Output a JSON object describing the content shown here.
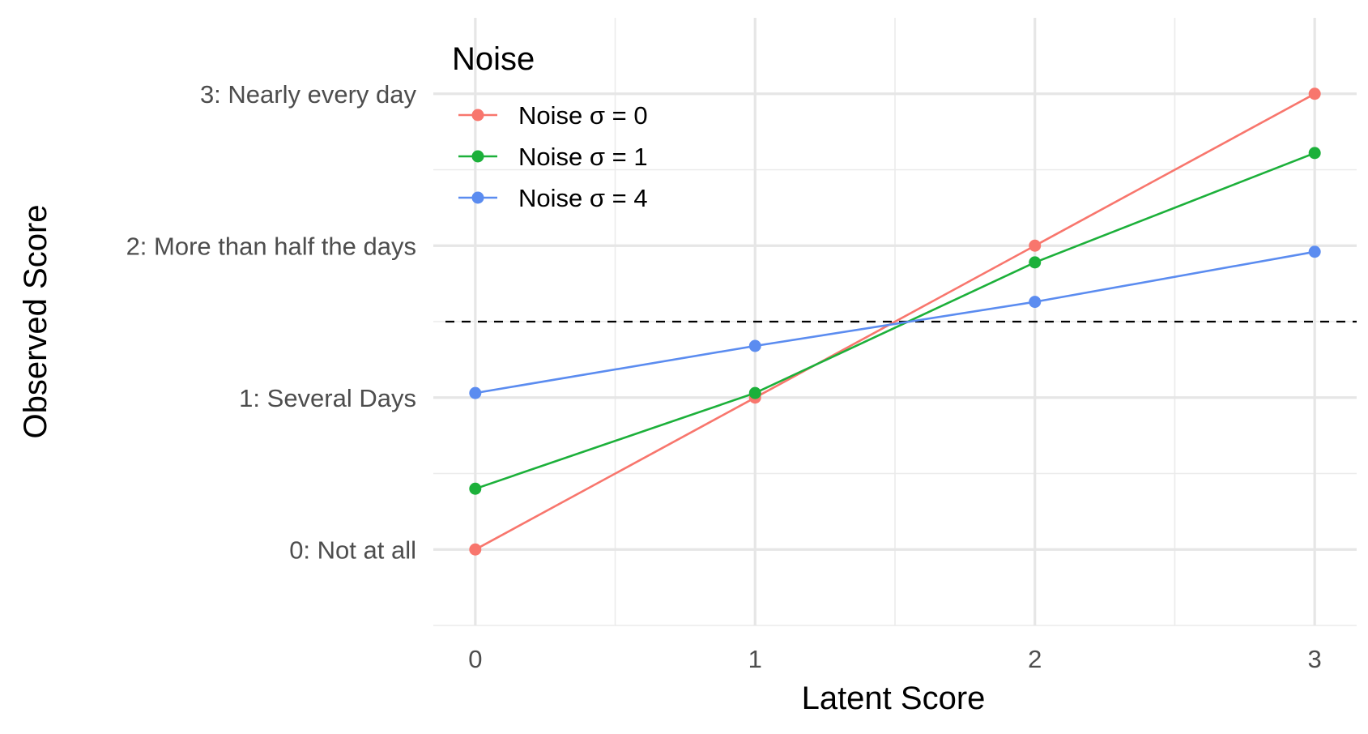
{
  "chart_data": {
    "type": "line",
    "xlabel": "Latent Score",
    "ylabel": "Observed Score",
    "x": [
      0,
      1,
      2,
      3
    ],
    "xlim": [
      -0.15,
      3.15
    ],
    "ylim": [
      -0.5,
      3.5
    ],
    "x_ticks": [
      {
        "value": 0,
        "label": "0"
      },
      {
        "value": 1,
        "label": "1"
      },
      {
        "value": 2,
        "label": "2"
      },
      {
        "value": 3,
        "label": "3"
      }
    ],
    "y_ticks": [
      {
        "value": 0,
        "label": "0: Not at all"
      },
      {
        "value": 1,
        "label": "1: Several Days"
      },
      {
        "value": 2,
        "label": "2: More than half the days"
      },
      {
        "value": 3,
        "label": "3: Nearly every day"
      }
    ],
    "x_minor_grid": [
      0.5,
      1.5,
      2.5
    ],
    "y_minor_grid": [
      -0.5,
      0.5,
      1.5,
      2.5
    ],
    "reference_line": {
      "y": 1.5,
      "style": "dashed",
      "color": "#000000"
    },
    "legend": {
      "title": "Noise",
      "position": "top-left"
    },
    "grid": true,
    "series": [
      {
        "name": "Noise σ = 0",
        "color": "#F8766D",
        "values": [
          0.0,
          1.0,
          2.0,
          3.0
        ]
      },
      {
        "name": "Noise σ = 1",
        "color": "#1CB03A",
        "values": [
          0.4,
          1.03,
          1.89,
          2.61
        ]
      },
      {
        "name": "Noise σ = 4",
        "color": "#5B8CF0",
        "values": [
          1.03,
          1.34,
          1.63,
          1.96
        ]
      }
    ]
  }
}
